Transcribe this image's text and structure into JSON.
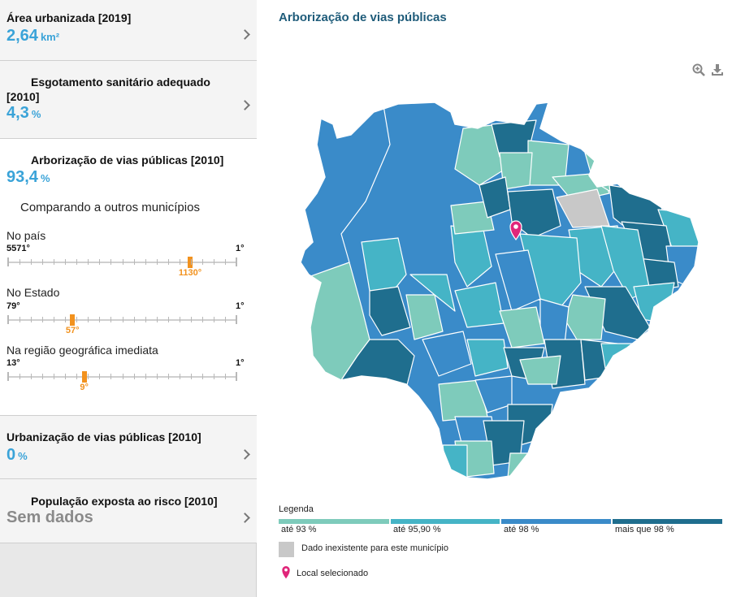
{
  "indicators": [
    {
      "title": "Área urbanizada [2019]",
      "value": "2,64",
      "unit": "km²"
    },
    {
      "title": "Esgotamento sanitário adequado",
      "title2": "[2010]",
      "value": "4,3",
      "unit": "%"
    },
    {
      "title": "Arborização de vias públicas [2010]",
      "value": "93,4",
      "unit": "%"
    },
    {
      "title": "Urbanização de vias públicas [2010]",
      "value": "0",
      "unit": "%"
    },
    {
      "title": "População exposta ao risco [2010]",
      "value": "Sem dados"
    }
  ],
  "comparison": {
    "heading": "Comparando a outros municípios",
    "rankings": [
      {
        "label": "No país",
        "worst": "5571°",
        "best": "1°",
        "position": "1130°",
        "rank": 1130,
        "total": 5571
      },
      {
        "label": "No Estado",
        "worst": "79°",
        "best": "1°",
        "position": "57°",
        "rank": 57,
        "total": 79
      },
      {
        "label": "Na região geográfica imediata",
        "worst": "13°",
        "best": "1°",
        "position": "9°",
        "rank": 9,
        "total": 13
      }
    ]
  },
  "map": {
    "title": "Arborização de vias públicas",
    "tools": {
      "zoom_icon": "zoom-in-icon",
      "download_icon": "download-icon"
    },
    "colors": {
      "c1": "#7ecbbb",
      "c2": "#45b4c6",
      "c3": "#3a8bc9",
      "c4": "#1f6e8e",
      "nodata": "#c8c8c8",
      "pin": "#e0267a"
    }
  },
  "legend": {
    "title": "Legenda",
    "classes": [
      {
        "label": "até 93 %",
        "color": "#7ecbbb"
      },
      {
        "label": "até 95,90 %",
        "color": "#45b4c6"
      },
      {
        "label": "até 98 %",
        "color": "#3a8bc9"
      },
      {
        "label": "mais que 98 %",
        "color": "#1f6e8e"
      }
    ],
    "nodata_label": "Dado inexistente para este município",
    "selected_label": "Local selecionado"
  }
}
